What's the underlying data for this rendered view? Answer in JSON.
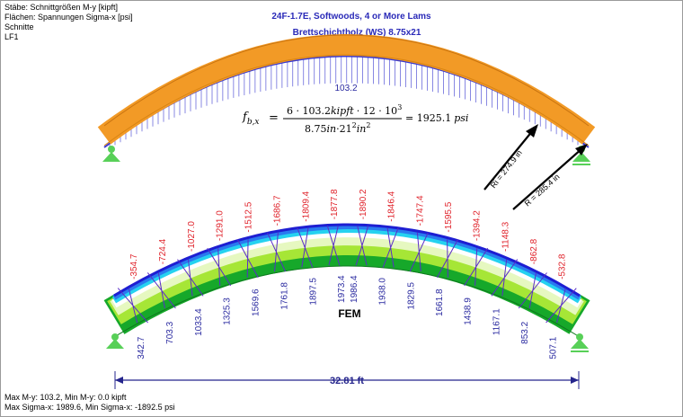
{
  "info": {
    "line1": "Stäbe: Schnittgrößen M-y [kipft]",
    "line2": "Flächen: Spannungen Sigma-x [psi]",
    "line3": "Schnitte",
    "line4": "LF1",
    "bottom1": "Max M-y: 103.2, Min M-y: 0.0 kipft",
    "bottom2": "Max Sigma-x: 1989.6, Min Sigma-x: -1892.5 psi"
  },
  "title": {
    "line1": "24F-1.7E, Softwoods, 4 or More Lams",
    "line2": "Brettschichtholz (WS) 8.75x21"
  },
  "moment_label": "103.2",
  "equation": {
    "lhs": "f",
    "lhs_sub": "b,x",
    "eq": "=",
    "num_a": "6 · 103.2",
    "num_unit": "kipft",
    "num_b": "· 12 · 10",
    "num_exp": "3",
    "den_a": "8.75",
    "den_unit1": "in",
    "den_b": "·21",
    "den_exp1": "2",
    "den_unit2": "in",
    "den_exp2": "2",
    "result": "= 1925.1",
    "result_unit": "psi"
  },
  "radius": {
    "ri": "Ri = 274.9 in",
    "r": "R = 285.4 in"
  },
  "fem_label": "FEM",
  "span_label": "32.81 ft",
  "stresses_top": [
    "-354.7",
    "-724.4",
    "-1027.0",
    "-1291.0",
    "-1512.5",
    "-1686.7",
    "-1809.4",
    "-1877.8",
    "-1890.2",
    "-1846.4",
    "-1747.4",
    "-1595.5",
    "-1394.2",
    "-1148.3",
    "-862.8",
    "-532.8"
  ],
  "stresses_bottom": [
    "342.7",
    "703.3",
    "1033.4",
    "1325.3",
    "1569.6",
    "1761.8",
    "1897.5",
    "1973.4",
    "1986.4",
    "1938.0",
    "1829.5",
    "1661.8",
    "1438.9",
    "1167.1",
    "853.2",
    "507.1"
  ],
  "colors": {
    "beam": "#f29a26",
    "diagram": "#3a3ad0",
    "support": "#58d058",
    "red_label": "#e0242c",
    "blue_label": "#2a2aa0",
    "dimension": "#24248c"
  }
}
